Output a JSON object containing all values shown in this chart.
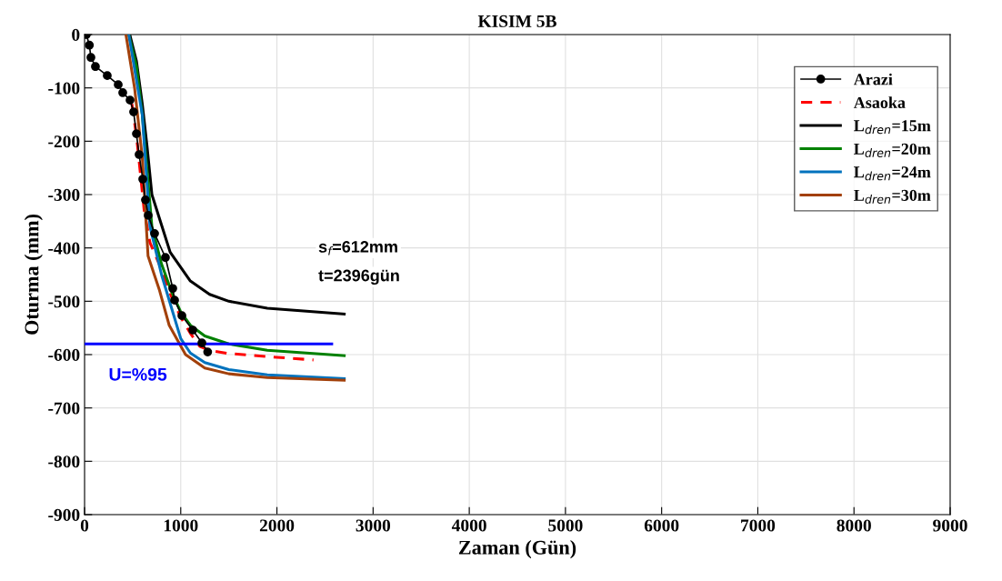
{
  "chart_data": {
    "type": "line",
    "title": "KISIM 5B",
    "xlabel": "Zaman (Gün)",
    "ylabel": "Oturma (mm)",
    "xlim": [
      0,
      9000
    ],
    "xticks": [
      0,
      1000,
      2000,
      3000,
      4000,
      5000,
      6000,
      7000,
      8000,
      9000
    ],
    "ylim": [
      -900,
      0
    ],
    "yticks": [
      -900,
      -800,
      -700,
      -600,
      -500,
      -400,
      -300,
      -200,
      -100,
      0
    ],
    "grid": true,
    "legend": "top right",
    "series": [
      {
        "name": "Arazi",
        "color": "#000000",
        "marker": "circle",
        "line_style": "solid",
        "x": [
          19,
          50,
          66,
          113,
          236,
          350,
          397,
          473,
          510,
          539,
          567,
          605,
          633,
          662,
          728,
          841,
          917,
          936,
          1012,
          1125,
          1220,
          1280
        ],
        "values": [
          0,
          -20,
          -43,
          -60,
          -77,
          -94,
          -109,
          -123,
          -145,
          -186,
          -225,
          -271,
          -310,
          -339,
          -373,
          -418,
          -476,
          -498,
          -527,
          -554,
          -578,
          -595
        ]
      },
      {
        "name": "Asaoka",
        "color": "#ff0000",
        "marker": "none",
        "line_style": "dashed",
        "x": [
          492,
          540,
          580,
          620,
          680,
          800,
          900,
          1000,
          1100,
          1200,
          1300,
          1500,
          2000,
          2380
        ],
        "values": [
          -130,
          -190,
          -260,
          -330,
          -390,
          -440,
          -490,
          -530,
          -560,
          -585,
          -592,
          -598,
          -605,
          -610
        ]
      },
      {
        "name": "L$_{dren}$=15m",
        "color": "#000000",
        "marker": "none",
        "line_style": "solid",
        "x": [
          470,
          540,
          600,
          650,
          700,
          890,
          1100,
          1300,
          1500,
          1900,
          2700
        ],
        "values": [
          0,
          -50,
          -130,
          -210,
          -300,
          -408,
          -462,
          -487,
          -500,
          -513,
          -524
        ]
      },
      {
        "name": "L$_{dren}$=20m",
        "color": "#008000",
        "marker": "none",
        "line_style": "solid",
        "x": [
          460,
          540,
          600,
          700,
          800,
          900,
          1000,
          1100,
          1250,
          1500,
          1900,
          2700
        ],
        "values": [
          0,
          -60,
          -150,
          -360,
          -430,
          -480,
          -520,
          -545,
          -565,
          -580,
          -592,
          -602
        ]
      },
      {
        "name": "L$_{dren}$=24m",
        "color": "#0072bd",
        "marker": "none",
        "line_style": "solid",
        "x": [
          460,
          600,
          680,
          800,
          900,
          1000,
          1100,
          1250,
          1500,
          1900,
          2700
        ],
        "values": [
          0,
          -150,
          -360,
          -450,
          -510,
          -570,
          -597,
          -615,
          -628,
          -638,
          -645
        ]
      },
      {
        "name": "L$_{dren}$=30m",
        "color": "#a2400a",
        "marker": "none",
        "line_style": "solid",
        "x": [
          430,
          520,
          600,
          660,
          780,
          880,
          1050,
          1250,
          1500,
          1900,
          2700
        ],
        "values": [
          0,
          -100,
          -230,
          -415,
          -480,
          -545,
          -600,
          -625,
          -636,
          -643,
          -648
        ]
      },
      {
        "name": "U=%95",
        "color": "#0000ff",
        "marker": "none",
        "line_style": "solid",
        "x": [
          0,
          2570
        ],
        "values": [
          -580,
          -580
        ]
      }
    ],
    "annotations": [
      "s$_{f}$=612mm",
      "t=2396gün"
    ]
  }
}
